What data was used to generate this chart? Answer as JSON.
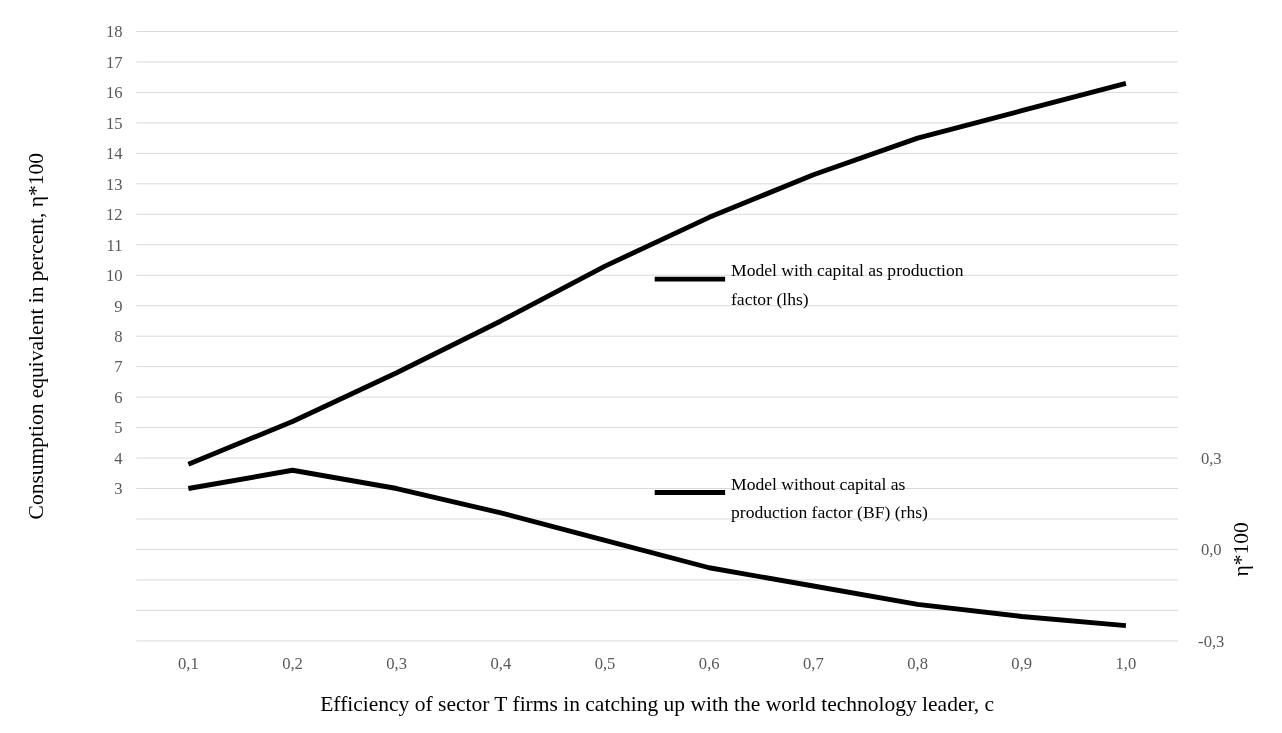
{
  "chart_data": {
    "type": "line",
    "xlabel": "Efficiency of sector T firms in catching up with the world technology leader, c",
    "ylabel": "Consumption equivalent in percent, η*100",
    "y2label": "η*100",
    "categories": [
      "0,1",
      "0,2",
      "0,3",
      "0,4",
      "0,5",
      "0,6",
      "0,7",
      "0,8",
      "0,9",
      "1,0"
    ],
    "series": [
      {
        "name": "Model with capital as production factor (lhs)",
        "color": "#000000",
        "values": [
          3.8,
          5.2,
          6.8,
          8.5,
          10.3,
          11.9,
          13.3,
          14.5,
          15.4,
          16.3
        ]
      },
      {
        "name": "Model without capital as production factor (BF) (rhs)",
        "color": "#000000",
        "axis": "y2",
        "values": [
          0.2,
          0.26,
          0.2,
          0.12,
          0.03,
          -0.06,
          -0.12,
          -0.18,
          -0.22,
          -0.25
        ]
      }
    ],
    "ylim": [
      -2,
      18
    ],
    "yticks": [
      {
        "value": -2,
        "label": null
      },
      {
        "value": -1,
        "label": null
      },
      {
        "value": 0,
        "label": null
      },
      {
        "value": 1,
        "label": null
      },
      {
        "value": 2,
        "label": null
      },
      3,
      4,
      5,
      6,
      7,
      8,
      9,
      10,
      11,
      12,
      13,
      14,
      15,
      16,
      17,
      18
    ],
    "y2lim": [
      -0.3,
      1.7
    ],
    "y2ticks": [
      {
        "value": -0.3,
        "label": "-0,3"
      },
      {
        "value": 0,
        "label": "0,0"
      },
      {
        "value": 0.3,
        "label": "0,3"
      }
    ],
    "grid": "y",
    "legend": "right",
    "marker": "none",
    "line_style": "solid"
  }
}
